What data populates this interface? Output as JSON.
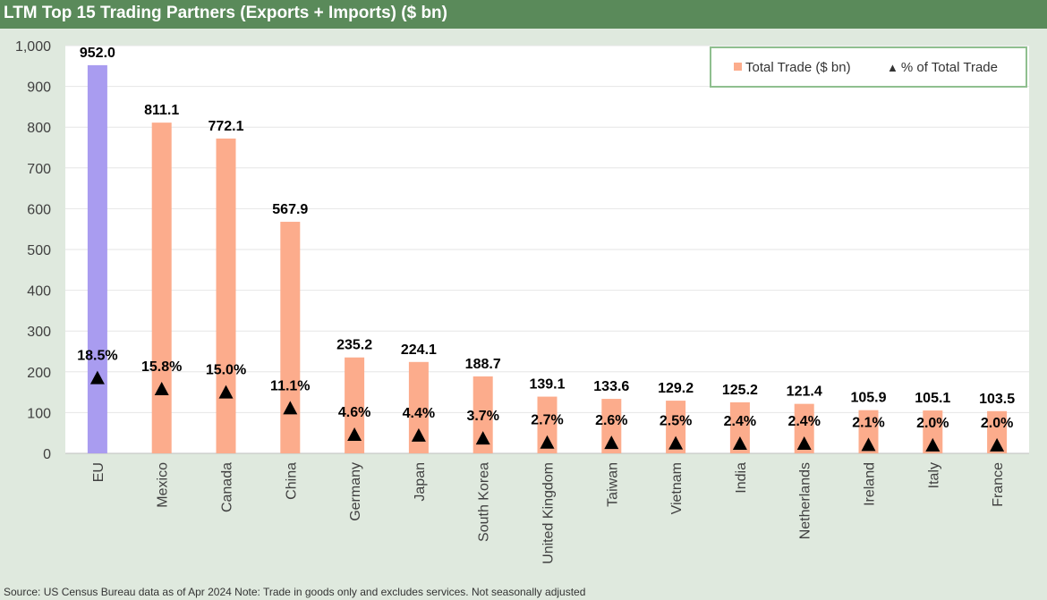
{
  "title": "LTM Top 15 Trading Partners (Exports + Imports) ($ bn)",
  "source": "Source: US Census Bureau data as of Apr 2024 Note: Trade in goods only and excludes services. Not seasonally adjusted",
  "colors": {
    "title_bg": "#5a8a5a",
    "highlight_bar": "#a99cf0",
    "bar": "#fcac8c",
    "marker": "#000000",
    "legend_border": "#8fbf8f"
  },
  "chart_data": {
    "type": "bar",
    "title": "LTM Top 15 Trading Partners (Exports + Imports) ($ bn)",
    "categories": [
      "EU",
      "Mexico",
      "Canada",
      "China",
      "Germany",
      "Japan",
      "South Korea",
      "United Kingdom",
      "Taiwan",
      "Vietnam",
      "India",
      "Netherlands",
      "Ireland",
      "Italy",
      "France"
    ],
    "series": [
      {
        "name": "Total Trade ($ bn)",
        "type": "bar",
        "values": [
          952.0,
          811.1,
          772.1,
          567.9,
          235.2,
          224.1,
          188.7,
          139.1,
          133.6,
          129.2,
          125.2,
          121.4,
          105.9,
          105.1,
          103.5
        ],
        "labels": [
          "952.0",
          "811.1",
          "772.1",
          "567.9",
          "235.2",
          "224.1",
          "188.7",
          "139.1",
          "133.6",
          "129.2",
          "125.2",
          "121.4",
          "105.9",
          "105.1",
          "103.5"
        ]
      },
      {
        "name": "% of Total Trade",
        "type": "marker",
        "values": [
          18.5,
          15.8,
          15.0,
          11.1,
          4.6,
          4.4,
          3.7,
          2.7,
          2.6,
          2.5,
          2.4,
          2.4,
          2.1,
          2.0,
          2.0
        ],
        "labels": [
          "18.5%",
          "15.8%",
          "15.0%",
          "11.1%",
          "4.6%",
          "4.4%",
          "3.7%",
          "2.7%",
          "2.6%",
          "2.5%",
          "2.4%",
          "2.4%",
          "2.1%",
          "2.0%",
          "2.0%"
        ]
      }
    ],
    "highlight_category": "EU",
    "ylim": [
      0,
      1000
    ],
    "yticks": [
      "0",
      "100",
      "200",
      "300",
      "400",
      "500",
      "600",
      "700",
      "800",
      "900",
      "1,000"
    ],
    "grid": true,
    "legend_position": "top-right"
  }
}
